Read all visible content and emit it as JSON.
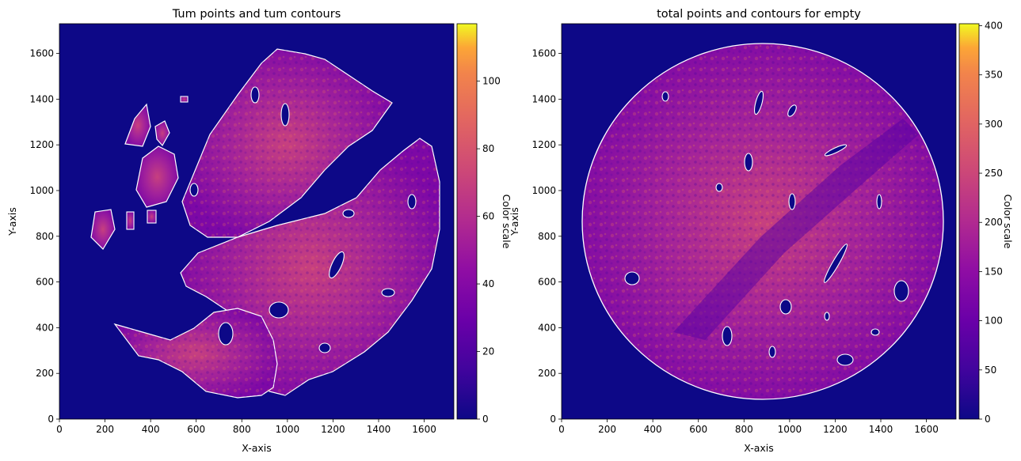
{
  "chart_data": [
    {
      "type": "heatmap",
      "title": "Tum points and tum contours",
      "xlabel": "X-axis",
      "ylabel": "Y-axis",
      "xlim": [
        0,
        1730
      ],
      "ylim": [
        0,
        1730
      ],
      "xticks": [
        0,
        200,
        400,
        600,
        800,
        1000,
        1200,
        1400,
        1600
      ],
      "yticks": [
        0,
        200,
        400,
        600,
        800,
        1000,
        1200,
        1400,
        1600
      ],
      "colormap": "plasma",
      "contour_color": "#ffffff",
      "grid": false,
      "colorbar": {
        "label": "Color scale",
        "range": [
          0,
          117
        ],
        "ticks": [
          0,
          20,
          40,
          60,
          80,
          100
        ]
      }
    },
    {
      "type": "heatmap",
      "title": "total points and contours for empty",
      "xlabel": "X-axis",
      "ylabel": "Y-axis",
      "xlim": [
        0,
        1730
      ],
      "ylim": [
        0,
        1730
      ],
      "xticks": [
        0,
        200,
        400,
        600,
        800,
        1000,
        1200,
        1400,
        1600
      ],
      "yticks": [
        0,
        200,
        400,
        600,
        800,
        1000,
        1200,
        1400,
        1600
      ],
      "colormap": "plasma",
      "contour_color": "#ffffff",
      "grid": false,
      "colorbar": {
        "label": "Color scale",
        "range": [
          0,
          402
        ],
        "ticks": [
          0,
          50,
          100,
          150,
          200,
          250,
          300,
          350,
          400
        ]
      }
    }
  ]
}
